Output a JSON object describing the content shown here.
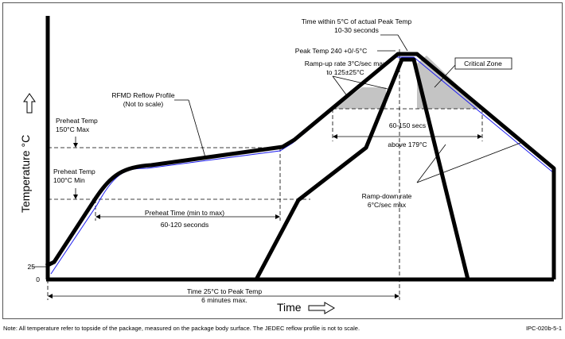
{
  "diagram": {
    "y_axis_title": "Temperature °C",
    "x_axis_title": "Time",
    "y_tick_25": "25",
    "y_tick_0": "0",
    "labels": {
      "time_within_l1": "Time within 5°C of actual Peak Temp",
      "time_within_l2": "10-30 seconds",
      "peak_temp": "Peak Temp 240 +0/-5°C",
      "rampup_l1": "Ramp-up rate 3°C/sec max",
      "rampup_l2": "to 125±25°C",
      "critical_zone": "Critical Zone",
      "rfmd_l1": "RFMD Reflow Profile",
      "rfmd_l2": "(Not to scale)",
      "preheat150_l1": "Preheat Temp",
      "preheat150_l2": "150°C Max",
      "preheat100_l1": "Preheat Temp",
      "preheat100_l2": "100°C Min",
      "secs60_l1": "60-150 secs",
      "secs60_l2": "above 179°C",
      "preheat_time_l1": "Preheat Time (min to max)",
      "preheat_time_l2": "60-120 seconds",
      "rampdown_l1": "Ramp-down rate",
      "rampdown_l2": "6°C/sec max",
      "time25_l1": "Time 25°C to Peak Temp",
      "time25_l2": "6 minutes max."
    },
    "note": "Note: All temperature refer to topside of the package, measured on the package body surface. The JEDEC reflow profile is not to scale.",
    "figure_id": "IPC-020b-5-1",
    "colors": {
      "curve": "#000000",
      "rfmd_curve": "#1c1cf0",
      "critical_zone_fill": "#c4c4c4"
    }
  }
}
